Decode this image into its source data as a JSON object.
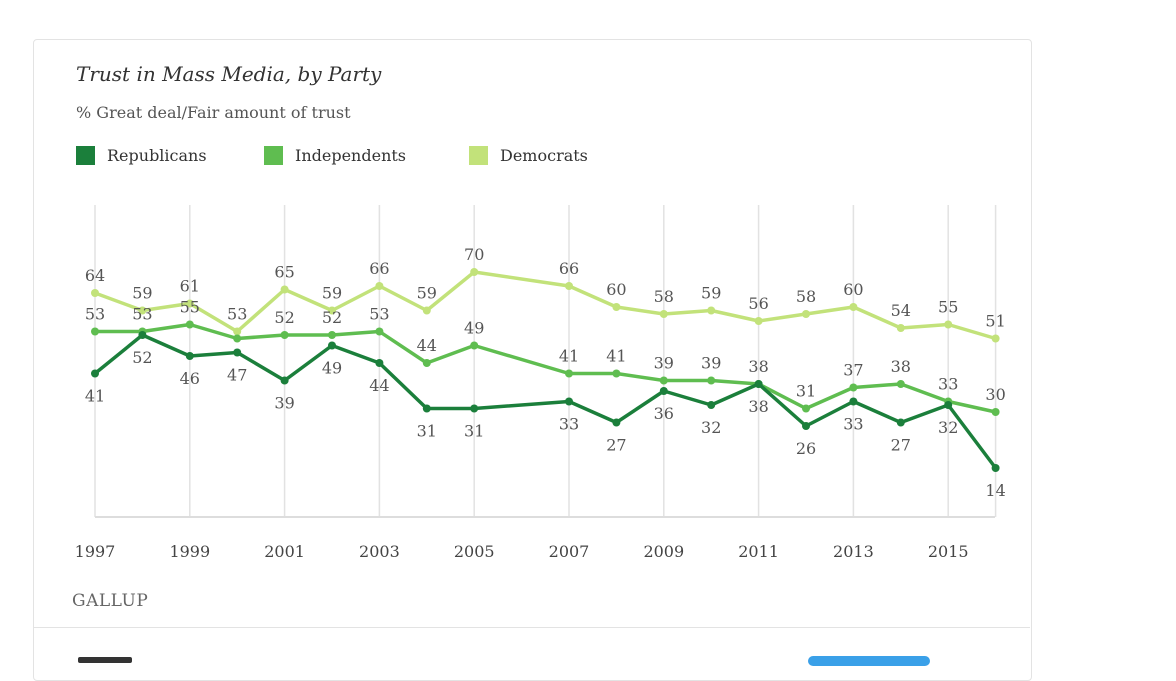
{
  "chart_data": {
    "type": "line",
    "title": "Trust in Mass Media, by Party",
    "subtitle": "% Great deal/Fair amount of trust",
    "x": [
      1997,
      1998,
      1999,
      2000,
      2001,
      2002,
      2003,
      2004,
      2005,
      2007,
      2008,
      2009,
      2010,
      2011,
      2012,
      2013,
      2014,
      2015,
      2016
    ],
    "x_tick_labels": [
      "1997",
      "1999",
      "2001",
      "2003",
      "2005",
      "2007",
      "2009",
      "2011",
      "2013",
      "2015"
    ],
    "series": [
      {
        "name": "Republicans",
        "color": "#1b7f3b",
        "values": [
          41,
          52,
          46,
          47,
          39,
          49,
          44,
          31,
          31,
          33,
          27,
          36,
          32,
          38,
          26,
          33,
          27,
          32,
          14
        ],
        "label_pos": "below"
      },
      {
        "name": "Independents",
        "color": "#5fbd50",
        "values": [
          53,
          53,
          55,
          51,
          52,
          52,
          53,
          44,
          49,
          41,
          41,
          39,
          39,
          38,
          31,
          37,
          38,
          33,
          30
        ],
        "labeled": [
          true,
          true,
          true,
          false,
          true,
          true,
          true,
          true,
          true,
          true,
          true,
          true,
          true,
          true,
          true,
          true,
          true,
          true,
          true
        ],
        "label_pos": "above"
      },
      {
        "name": "Democrats",
        "color": "#c2e27a",
        "values": [
          64,
          59,
          61,
          53,
          65,
          59,
          66,
          59,
          70,
          66,
          60,
          58,
          59,
          56,
          58,
          60,
          54,
          55,
          51
        ],
        "label_pos": "above"
      }
    ],
    "ylim": [
      0,
      90
    ],
    "grid": "vertical",
    "legend": "top-left",
    "source": "GALLUP"
  }
}
